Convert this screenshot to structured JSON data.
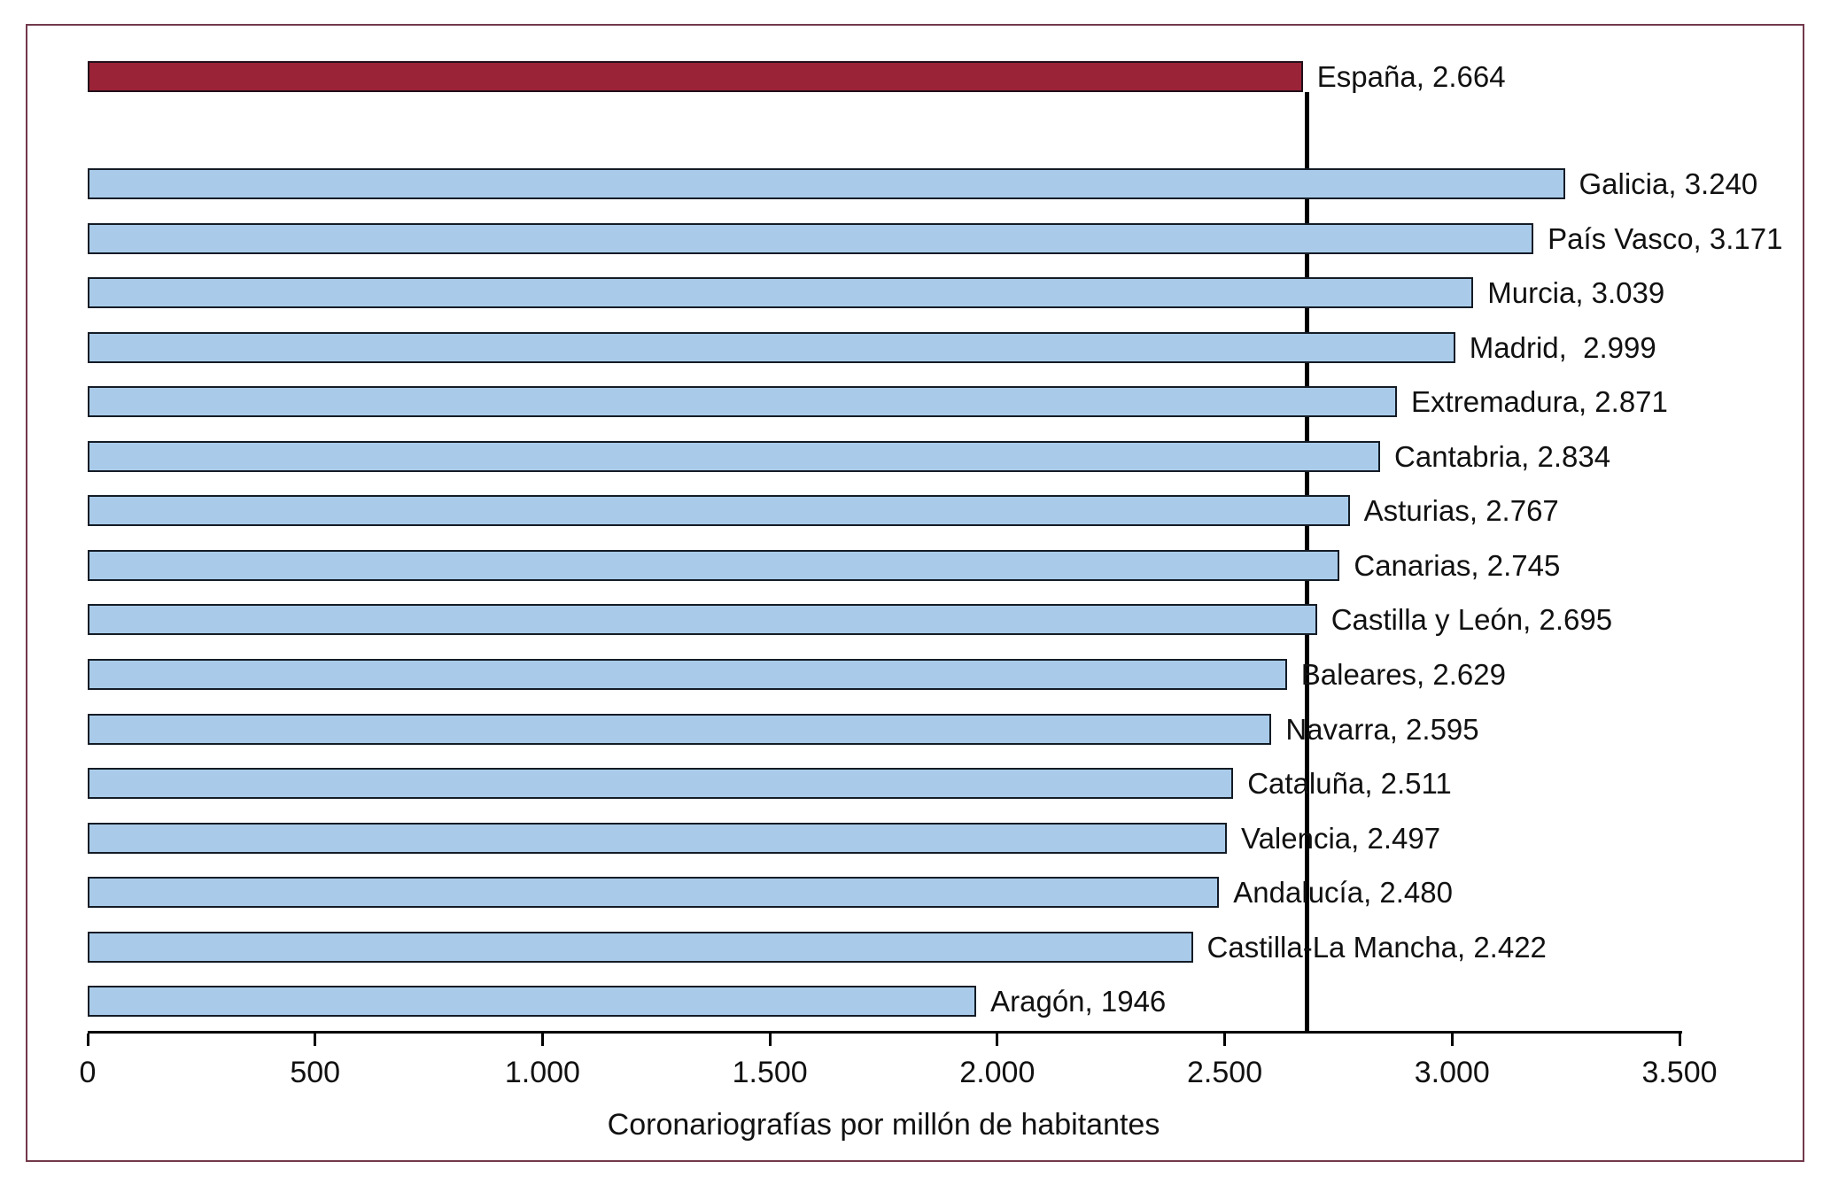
{
  "frame": {
    "border_color": "#72394b"
  },
  "chart_data": {
    "type": "bar",
    "orientation": "horizontal",
    "title": "",
    "xlabel": "Coronariografías por millón de habitantes",
    "ylabel": "",
    "xlim": [
      0,
      3500
    ],
    "grid": false,
    "legend": false,
    "text_color": "#111111",
    "axis_color": "#000000",
    "x_ticks": [
      {
        "value": 0,
        "label": "0"
      },
      {
        "value": 500,
        "label": "500"
      },
      {
        "value": 1000,
        "label": "1.000"
      },
      {
        "value": 1500,
        "label": "1.500"
      },
      {
        "value": 2000,
        "label": "2.000"
      },
      {
        "value": 2500,
        "label": "2.500"
      },
      {
        "value": 3000,
        "label": "3.000"
      },
      {
        "value": 3500,
        "label": "3.500"
      }
    ],
    "highlight_bar": {
      "name": "España",
      "value": 2664,
      "label": "España, 2.664",
      "fill": "#9b2337",
      "border": "#23101a"
    },
    "reference_line": {
      "value": 2664,
      "color": "#000000"
    },
    "bar_style": {
      "fill": "#a9cbe9",
      "border": "#141c26"
    },
    "bars": [
      {
        "name": "Galicia",
        "value": 3240,
        "label": "Galicia, 3.240"
      },
      {
        "name": "País Vasco",
        "value": 3171,
        "label": "País Vasco, 3.171"
      },
      {
        "name": "Murcia",
        "value": 3039,
        "label": "Murcia, 3.039"
      },
      {
        "name": "Madrid",
        "value": 2999,
        "label": "Madrid,  2.999"
      },
      {
        "name": "Extremadura",
        "value": 2871,
        "label": "Extremadura, 2.871"
      },
      {
        "name": "Cantabria",
        "value": 2834,
        "label": "Cantabria, 2.834"
      },
      {
        "name": "Asturias",
        "value": 2767,
        "label": "Asturias, 2.767"
      },
      {
        "name": "Canarias",
        "value": 2745,
        "label": "Canarias, 2.745"
      },
      {
        "name": "Castilla y León",
        "value": 2695,
        "label": "Castilla y León, 2.695"
      },
      {
        "name": "Baleares",
        "value": 2629,
        "label": "Baleares, 2.629"
      },
      {
        "name": "Navarra",
        "value": 2595,
        "label": "Navarra, 2.595"
      },
      {
        "name": "Cataluña",
        "value": 2511,
        "label": "Cataluña, 2.511"
      },
      {
        "name": "Valencia",
        "value": 2497,
        "label": "Valencia, 2.497"
      },
      {
        "name": "Andalucía",
        "value": 2480,
        "label": "Andalucía, 2.480"
      },
      {
        "name": "Castilla-La Mancha",
        "value": 2422,
        "label": "Castilla-La Mancha, 2.422"
      },
      {
        "name": "Aragón",
        "value": 1946,
        "label": "Aragón, 1946"
      }
    ]
  }
}
